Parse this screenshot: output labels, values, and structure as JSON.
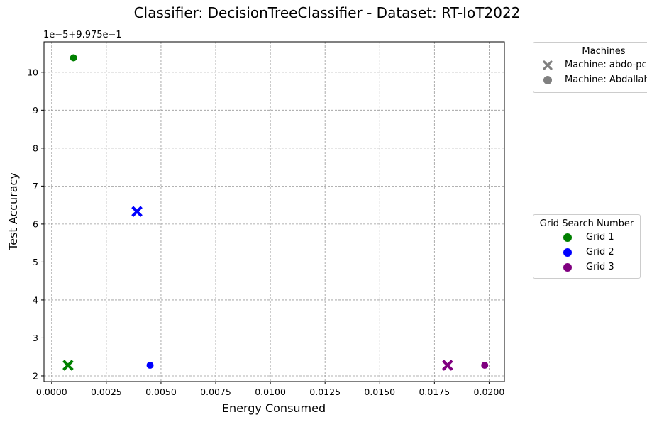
{
  "chart_data": {
    "type": "scatter",
    "title": "Classifier: DecisionTreeClassifier - Dataset: RT-IoT2022",
    "xlabel": "Energy Consumed",
    "ylabel": "Test Accuracy",
    "offset_text": "1e−5+9.975e−1",
    "xlim": [
      -0.00035,
      0.0207
    ],
    "ylim": [
      1.85,
      10.8
    ],
    "x_ticks": [
      0.0,
      0.0025,
      0.005,
      0.0075,
      0.01,
      0.0125,
      0.015,
      0.0175,
      0.02
    ],
    "x_tick_labels": [
      "0.0000",
      "0.0025",
      "0.0050",
      "0.0075",
      "0.0100",
      "0.0125",
      "0.0150",
      "0.0175",
      "0.0200"
    ],
    "y_ticks": [
      2,
      3,
      4,
      5,
      6,
      7,
      8,
      9,
      10
    ],
    "y_tick_labels": [
      "2",
      "3",
      "4",
      "5",
      "6",
      "7",
      "8",
      "9",
      "10"
    ],
    "grid": true,
    "grid_style": "dashed",
    "points": [
      {
        "machine": "Machine: abdo-pc",
        "grid": "Grid 1",
        "x": 0.00075,
        "y": 2.28,
        "marker": "x",
        "color": "#008000"
      },
      {
        "machine": "Machine: abdo-pc",
        "grid": "Grid 2",
        "x": 0.0039,
        "y": 6.33,
        "marker": "x",
        "color": "#0000ff"
      },
      {
        "machine": "Machine: abdo-pc",
        "grid": "Grid 3",
        "x": 0.0181,
        "y": 2.28,
        "marker": "x",
        "color": "#800080"
      },
      {
        "machine": "Machine: Abdallah",
        "grid": "Grid 1",
        "x": 0.001,
        "y": 10.38,
        "marker": "o",
        "color": "#008000"
      },
      {
        "machine": "Machine: Abdallah",
        "grid": "Grid 2",
        "x": 0.0045,
        "y": 2.28,
        "marker": "o",
        "color": "#0000ff"
      },
      {
        "machine": "Machine: Abdallah",
        "grid": "Grid 3",
        "x": 0.0198,
        "y": 2.28,
        "marker": "o",
        "color": "#800080"
      }
    ],
    "legends": [
      {
        "title": "Machines",
        "placement": "outside upper right",
        "entries": [
          {
            "label": "Machine: abdo-pc",
            "marker": "x",
            "color": "#808080"
          },
          {
            "label": "Machine: Abdallah",
            "marker": "o",
            "color": "#808080"
          }
        ]
      },
      {
        "title": "Grid Search Number",
        "placement": "outside center right",
        "entries": [
          {
            "label": "Grid 1",
            "marker": "o",
            "color": "#008000"
          },
          {
            "label": "Grid 2",
            "marker": "o",
            "color": "#0000ff"
          },
          {
            "label": "Grid 3",
            "marker": "o",
            "color": "#800080"
          }
        ]
      }
    ]
  }
}
